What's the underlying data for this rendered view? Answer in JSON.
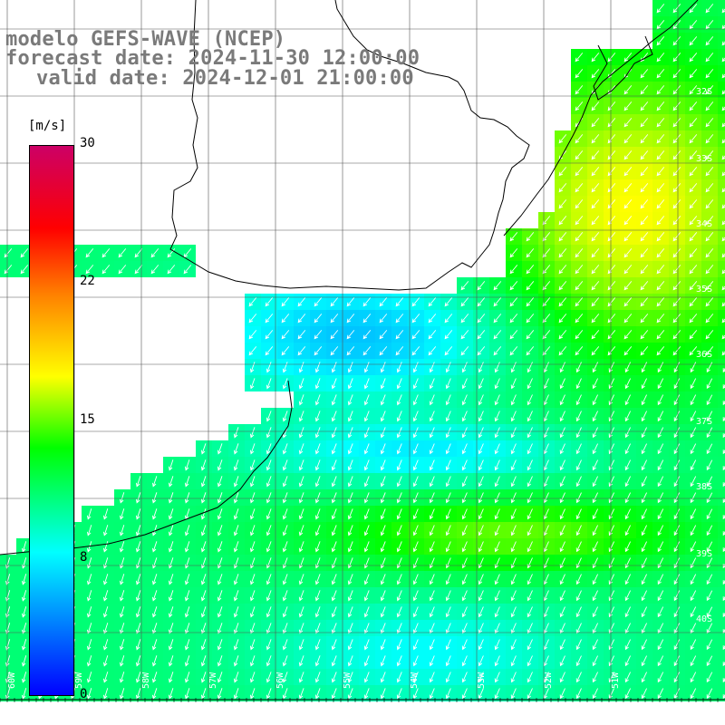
{
  "title": {
    "line1": "modelo GEFS-WAVE (NCEP)",
    "line2": "forecast date: 2024-11-30 12:00:00",
    "line3": "valid date: 2024-12-01 21:00:00"
  },
  "colorbar": {
    "unit": "[m/s]",
    "ticks": [
      "30",
      "22",
      "15",
      "8",
      "0"
    ],
    "stops": [
      "#0000ff",
      "#00ffff",
      "#00ff00",
      "#ffff00",
      "#ff8000",
      "#ff0000",
      "#cc0066"
    ]
  },
  "map": {
    "lat_labels": [
      "32S",
      "33S",
      "34S",
      "35S",
      "36S",
      "37S",
      "38S",
      "39S",
      "40S"
    ],
    "lon_labels": [
      "60W",
      "59W",
      "58W",
      "57W",
      "56W",
      "55W",
      "54W",
      "53W",
      "52W",
      "51W"
    ],
    "arrow_color": "#ffffff",
    "coast_color": "#000000",
    "grid_color": "#555555"
  }
}
